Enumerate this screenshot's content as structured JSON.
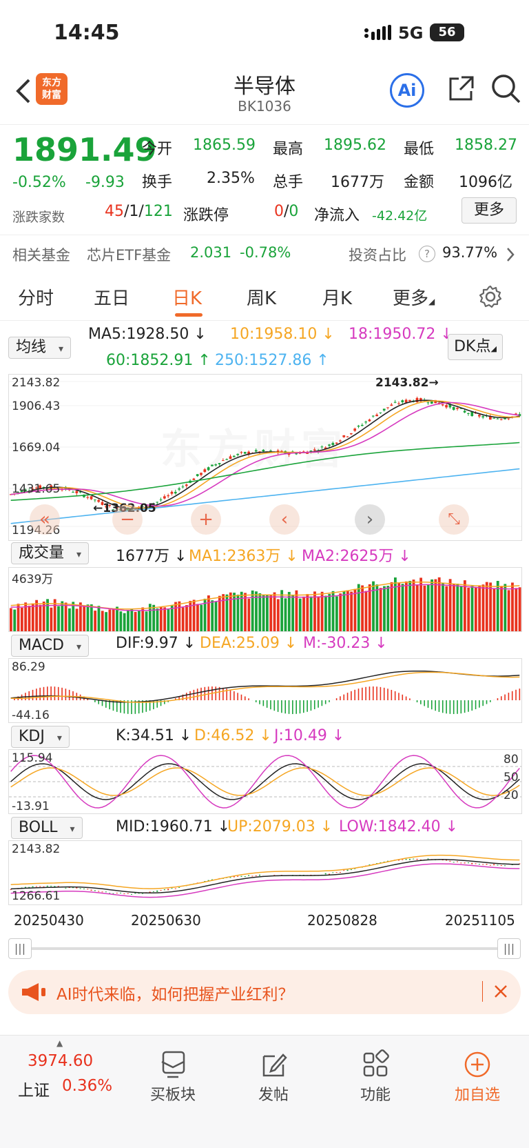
{
  "status": {
    "time": "14:45",
    "network": "5G",
    "battery": "56"
  },
  "header": {
    "title": "半导体",
    "code": "BK1036",
    "logo_line1": "东方",
    "logo_line2": "财富",
    "ai_label": "Ai"
  },
  "quote": {
    "price": "1891.49",
    "change_pct": "-0.52%",
    "change": "-9.93",
    "open_label": "今开",
    "open": "1865.59",
    "high_label": "最高",
    "high": "1895.62",
    "low_label": "最低",
    "low": "1858.27",
    "turnover_label": "换手",
    "turnover": "2.35%",
    "volume_label": "总手",
    "volume": "1677万",
    "amount_label": "金额",
    "amount": "1096亿",
    "breadth_label": "涨跌家数",
    "breadth_up": "45",
    "breadth_flat": "1",
    "breadth_down": "121",
    "breadth_sep": "/",
    "limit_label": "涨跌停",
    "limit_up": "0",
    "limit_down": "0",
    "netflow_label": "净流入",
    "netflow": "-42.42亿",
    "more_button": "更多"
  },
  "fund": {
    "label": "相关基金",
    "name": "芯片ETF基金",
    "price": "2.031",
    "change": "-0.78%",
    "ratio_label": "投资占比",
    "ratio": "93.77%"
  },
  "tabs": [
    "分时",
    "五日",
    "日K",
    "周K",
    "月K",
    "更多"
  ],
  "active_tab": "日K",
  "kline": {
    "selector": "均线",
    "ma5": "MA5:1928.50 ↓",
    "ma10": "10:1958.10 ↓",
    "ma18": "18:1950.72 ↓",
    "ma60": "60:1852.91 ↑",
    "ma250": "250:1527.86 ↑",
    "dk_button": "DK点",
    "y_labels": [
      "2143.82",
      "1906.43",
      "1669.04",
      "1431.65",
      "1194.26"
    ],
    "max_marker": "2143.82",
    "min_marker": "1362.05",
    "watermark": "东方财富"
  },
  "volume": {
    "selector": "成交量",
    "current": "1677万 ↓",
    "ma1": "MA1:2363万 ↓",
    "ma2": "MA2:2625万 ↓",
    "max_label": "4639万"
  },
  "macd": {
    "selector": "MACD",
    "dif": "DIF:9.97 ↓",
    "dea": "DEA:25.09 ↓",
    "m": "M:-30.23 ↓",
    "top": "86.29",
    "bottom": "-44.16"
  },
  "kdj": {
    "selector": "KDJ",
    "k": "K:34.51 ↓",
    "d": "D:46.52 ↓",
    "j": "J:10.49 ↓",
    "top": "115.94",
    "bottom": "-13.91",
    "levels": [
      "80",
      "50",
      "20"
    ]
  },
  "boll": {
    "selector": "BOLL",
    "mid": "MID:1960.71 ↓",
    "up": "UP:2079.03 ↓",
    "low": "LOW:1842.40 ↓",
    "top": "2143.82",
    "bottom": "1266.61"
  },
  "dates": [
    "20250430",
    "20250630",
    "20250828",
    "20251105"
  ],
  "banner": {
    "text": "AI时代来临，如何把握产业红利？"
  },
  "bottom": {
    "index_value": "3974.60",
    "index_name": "上证",
    "index_change": "0.36%",
    "items": [
      "买板块",
      "发帖",
      "功能",
      "加自选"
    ]
  },
  "colors": {
    "up": "#e8321e",
    "down": "#1aa33a",
    "ma10": "#f5a623",
    "ma18": "#d63abf",
    "ma250": "#4db3f0",
    "accent": "#f06a2a"
  }
}
